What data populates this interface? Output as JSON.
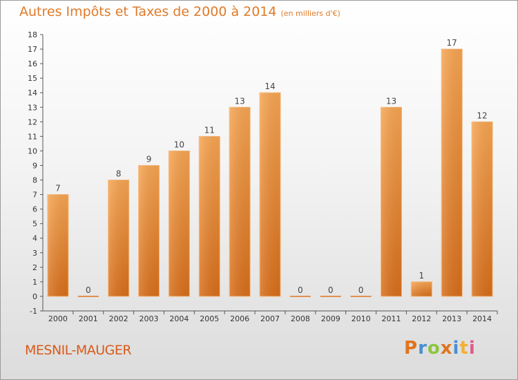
{
  "header": {
    "title": "Autres Impôts et Taxes de 2000 à 2014",
    "unit": "(en milliers d'€)"
  },
  "commune": "MESNIL-MAUGER",
  "logo": {
    "letters": [
      "P",
      "r",
      "o",
      "x",
      "i",
      "t",
      "i"
    ],
    "colors": [
      "#e0741e",
      "#4a8fd0",
      "#8cc63f",
      "#e0741e",
      "#4a8fd0",
      "#f2b134",
      "#e05a8a"
    ]
  },
  "colors": {
    "bar": "#f08a2e",
    "title": "#e07a28",
    "commune": "#d95a1a"
  },
  "chart_data": {
    "type": "bar",
    "title": "Autres Impôts et Taxes de 2000 à 2014",
    "categories": [
      "2000",
      "2001",
      "2002",
      "2003",
      "2004",
      "2005",
      "2006",
      "2007",
      "2008",
      "2009",
      "2010",
      "2011",
      "2012",
      "2013",
      "2014"
    ],
    "values": [
      7,
      0,
      8,
      9,
      10,
      11,
      13,
      14,
      0,
      0,
      0,
      13,
      1,
      17,
      12
    ],
    "ylim": [
      -1,
      18
    ],
    "yticks": [
      "-1",
      "0",
      "1",
      "2",
      "3",
      "4",
      "5",
      "6",
      "7",
      "8",
      "9",
      "10",
      "11",
      "12",
      "13",
      "14",
      "15",
      "16",
      "17",
      "18"
    ],
    "grid": false
  }
}
